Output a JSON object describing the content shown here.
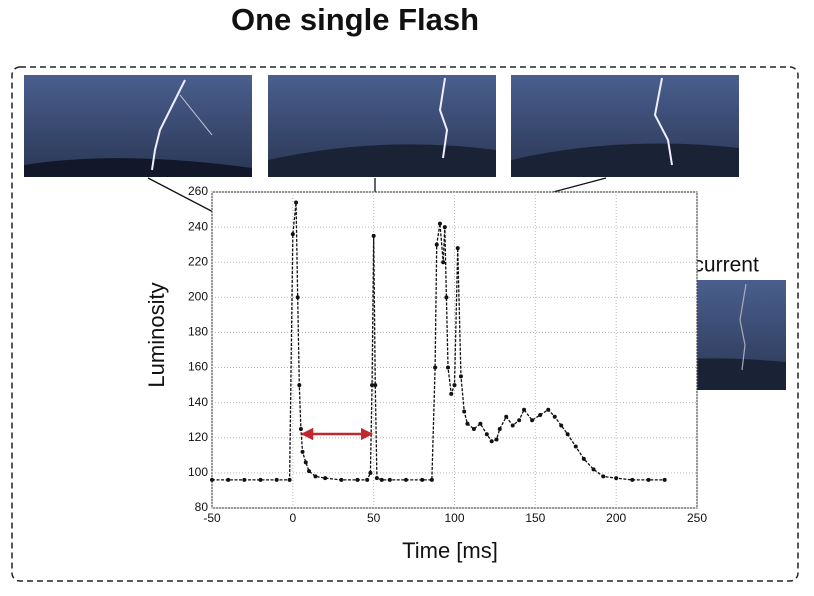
{
  "chart_data": {
    "type": "line",
    "title": "One single Flash",
    "x_label": "Time [ms]",
    "y_label": "Luminosity",
    "annotation": "Continuing current",
    "x": [
      -50,
      -40,
      -30,
      -20,
      -10,
      -2,
      0,
      2,
      3,
      4,
      5,
      6,
      8,
      10,
      14,
      20,
      30,
      40,
      46,
      48,
      49,
      50,
      51,
      52,
      55,
      60,
      70,
      80,
      86,
      88,
      89,
      91,
      93,
      94,
      95,
      96,
      98,
      100,
      102,
      104,
      106,
      108,
      112,
      116,
      120,
      123,
      126,
      128,
      132,
      136,
      140,
      143,
      148,
      153,
      158,
      162,
      166,
      170,
      175,
      180,
      186,
      192,
      200,
      210,
      220,
      230
    ],
    "series": [
      {
        "color": "#111111",
        "values": [
          96,
          96,
          96,
          96,
          96,
          96,
          236,
          254,
          200,
          150,
          125,
          112,
          106,
          101,
          98,
          97,
          96,
          96,
          96,
          100,
          150,
          235,
          150,
          97,
          96,
          96,
          96,
          96,
          96,
          160,
          230,
          242,
          220,
          240,
          200,
          160,
          145,
          150,
          228,
          155,
          135,
          128,
          125,
          128,
          122,
          118,
          119,
          125,
          132,
          127,
          130,
          136,
          130,
          133,
          136,
          132,
          127,
          122,
          115,
          108,
          102,
          98,
          97,
          96,
          96,
          96
        ]
      }
    ],
    "xlim": [
      -50,
      250
    ],
    "ylim": [
      80,
      260
    ],
    "xticks": [
      -50,
      0,
      50,
      100,
      150,
      200,
      250
    ],
    "yticks": [
      80,
      100,
      120,
      140,
      160,
      180,
      200,
      220,
      240,
      260
    ],
    "grid": true
  }
}
